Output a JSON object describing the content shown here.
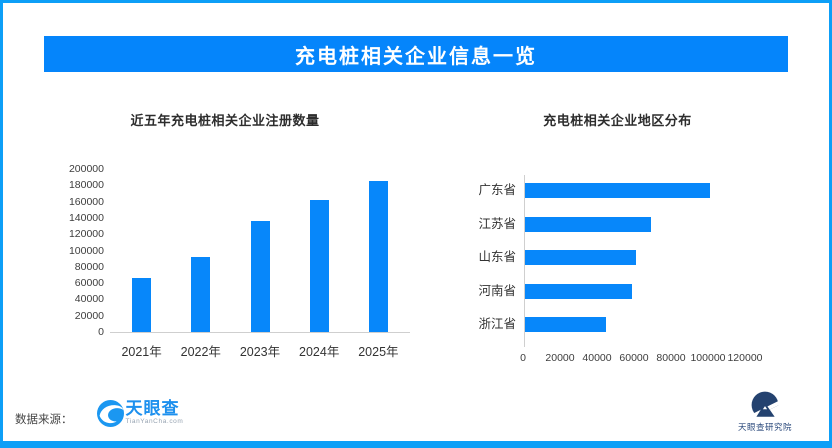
{
  "header": {
    "title": "充电桩相关企业信息一览"
  },
  "footer": {
    "source_label": "数据来源：",
    "tyc_logo": {
      "name": "天眼查",
      "domain": "TianYanCha.com"
    },
    "research_logo": {
      "name": "天眼查研究院"
    }
  },
  "colors": {
    "banner": "#0585fb",
    "bar": "#0787fa",
    "frame": "#0d9ff7",
    "axis_line": "#cfcfcf",
    "axis_text": "#3d3d3d",
    "logo_blue": "#1d90ee",
    "logo_navy": "#2b4a7c"
  },
  "chart_data": [
    {
      "id": "registrations",
      "type": "bar",
      "title": "近五年充电桩相关企业注册数量",
      "categories": [
        "2021年",
        "2022年",
        "2023年",
        "2024年",
        "2025年"
      ],
      "values": [
        66000,
        92000,
        136000,
        162000,
        185000
      ],
      "xlabel": "",
      "ylabel": "",
      "ylim": [
        0,
        200000
      ],
      "ytick_labels": [
        "0",
        "20000",
        "40000",
        "60000",
        "80000",
        "100000",
        "120000",
        "140000",
        "160000",
        "180000",
        "200000"
      ],
      "grid": false,
      "legend": false
    },
    {
      "id": "regions",
      "type": "bar-horizontal",
      "title": "充电桩相关企业地区分布",
      "categories": [
        "广东省",
        "江苏省",
        "山东省",
        "河南省",
        "浙江省"
      ],
      "values": [
        100000,
        68000,
        60000,
        58000,
        44000
      ],
      "xlabel": "",
      "ylabel": "",
      "xlim": [
        0,
        120000
      ],
      "xtick_labels": [
        "0",
        "20000",
        "40000",
        "60000",
        "80000",
        "100000",
        "120000"
      ],
      "grid": false,
      "legend": false
    }
  ]
}
